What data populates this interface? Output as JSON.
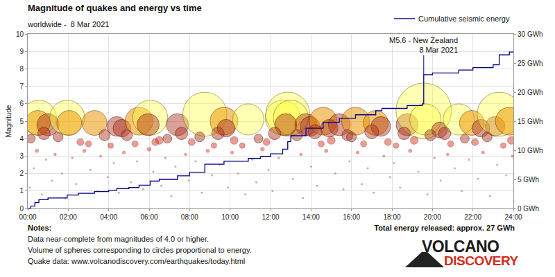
{
  "chart_data": {
    "type": "scatter",
    "title": "Magnitude of quakes and energy vs time",
    "subtitle": "worldwide -  8 Mar 2021",
    "y_label": "Magnitude",
    "xlim": [
      0,
      24
    ],
    "xticks": [
      {
        "value": 0,
        "label": "00:00"
      },
      {
        "value": 2,
        "label": "02:00"
      },
      {
        "value": 4,
        "label": "04:00"
      },
      {
        "value": 6,
        "label": "06:00"
      },
      {
        "value": 8,
        "label": "08:00"
      },
      {
        "value": 10,
        "label": "10:00"
      },
      {
        "value": 12,
        "label": "12:00"
      },
      {
        "value": 14,
        "label": "14:00"
      },
      {
        "value": 16,
        "label": "16:00"
      },
      {
        "value": 18,
        "label": "18:00"
      },
      {
        "value": 20,
        "label": "20:00"
      },
      {
        "value": 22,
        "label": "22:00"
      },
      {
        "value": 24,
        "label": "24:00"
      }
    ],
    "ylim": [
      0,
      10
    ],
    "yticks": [
      0,
      1,
      2,
      3,
      4,
      5,
      6,
      7,
      8,
      9,
      10
    ],
    "y2lim": [
      0,
      30
    ],
    "y2ticks": [
      {
        "value": 0,
        "label": "0 GWh"
      },
      {
        "value": 5,
        "label": "5 GWh"
      },
      {
        "value": 10,
        "label": "10 GWh"
      },
      {
        "value": 15,
        "label": "15 GWh"
      },
      {
        "value": 20,
        "label": "20 GWh"
      },
      {
        "value": 25,
        "label": "25 GWh"
      },
      {
        "value": 30,
        "label": "30 GWh"
      }
    ],
    "grid": true,
    "legend": "top right",
    "series": [
      {
        "type": "scatter",
        "marker": "bubble",
        "x": [
          0.55,
          0.5,
          1.0,
          1.95,
          2.05,
          3.3,
          4.4,
          4.65,
          5.5,
          6.05,
          5.95,
          7.4,
          8.75,
          9.7,
          9.8,
          10.9,
          12.6,
          12.85,
          13.0,
          12.75,
          13.75,
          13.95,
          14.6,
          14.9,
          15.4,
          16.2,
          17.2,
          17.45,
          18.75,
          19.57,
          19.65,
          20.35,
          21.3,
          21.95,
          22.4,
          23.1,
          23.3,
          23.8,
          0.15,
          0.8,
          1.5,
          2.6,
          3.0,
          3.8,
          4.1,
          4.9,
          5.3,
          6.5,
          6.9,
          7.6,
          8.1,
          8.5,
          9.2,
          9.4,
          10.2,
          10.6,
          11.4,
          11.8,
          12.2,
          13.3,
          14.2,
          15.0,
          15.8,
          16.6,
          17.0,
          17.8,
          18.2,
          18.6,
          19.1,
          19.9,
          20.6,
          20.9,
          21.6,
          22.1,
          22.7,
          23.5,
          23.9,
          6.3,
          14.5,
          16.0,
          0.1,
          0.3,
          0.45,
          0.7,
          0.9,
          1.2,
          1.35,
          1.7,
          1.85,
          2.2,
          2.4,
          2.8,
          3.1,
          3.45,
          3.6,
          3.95,
          4.25,
          4.5,
          4.75,
          5.1,
          5.4,
          5.7,
          6.0,
          6.2,
          6.6,
          6.8,
          7.1,
          7.3,
          7.8,
          7.95,
          8.3,
          8.6,
          8.9,
          9.1,
          9.5,
          9.9,
          10.1,
          10.4,
          10.75,
          11.1,
          11.3,
          11.6,
          11.9,
          12.1,
          12.4,
          13.1,
          13.5,
          13.6,
          14.0,
          14.3,
          14.75,
          15.2,
          15.6,
          15.9,
          16.3,
          16.5,
          16.8,
          17.1,
          17.6,
          17.9,
          18.1,
          18.4,
          18.9,
          19.3,
          19.75,
          20.1,
          20.4,
          20.75,
          21.1,
          21.45,
          21.8,
          22.25,
          22.5,
          22.85,
          23.2,
          23.65,
          23.95
        ],
        "values": [
          5.2,
          4.9,
          4.8,
          5.2,
          4.9,
          4.9,
          4.7,
          4.6,
          5.0,
          5.2,
          4.8,
          4.8,
          5.4,
          5.0,
          4.6,
          5.1,
          5.2,
          5.4,
          5.2,
          4.8,
          4.8,
          4.7,
          5.0,
          4.6,
          4.8,
          5.0,
          4.9,
          4.7,
          4.8,
          5.6,
          5.1,
          4.5,
          5.1,
          4.9,
          4.6,
          4.7,
          5.4,
          5.0,
          4.0,
          4.3,
          4.1,
          3.8,
          3.7,
          4.2,
          3.6,
          4.2,
          3.7,
          3.9,
          4.0,
          4.3,
          3.8,
          4.1,
          3.6,
          4.3,
          3.9,
          3.6,
          4.0,
          3.8,
          4.3,
          4.2,
          4.4,
          3.9,
          4.2,
          3.7,
          4.4,
          3.8,
          3.6,
          4.3,
          3.9,
          4.2,
          4.3,
          3.7,
          4.0,
          3.8,
          4.1,
          3.6,
          3.9,
          3.8,
          3.7,
          4.1,
          1.2,
          2.3,
          3.3,
          0.8,
          2.8,
          1.6,
          3.1,
          2.0,
          0.6,
          2.9,
          1.4,
          3.3,
          2.2,
          1.0,
          3.0,
          1.8,
          2.6,
          0.9,
          3.2,
          1.5,
          2.7,
          1.1,
          3.4,
          2.1,
          1.3,
          2.9,
          0.7,
          2.4,
          3.1,
          1.6,
          2.7,
          0.9,
          3.3,
          1.9,
          2.5,
          1.2,
          3.2,
          2.0,
          0.8,
          2.8,
          1.5,
          3.4,
          2.2,
          1.0,
          2.9,
          1.7,
          3.1,
          0.6,
          2.4,
          1.3,
          3.3,
          2.0,
          1.1,
          2.7,
          3.2,
          1.4,
          2.3,
          0.9,
          3.0,
          1.8,
          2.6,
          1.2,
          3.3,
          2.1,
          0.8,
          2.9,
          1.6,
          3.1,
          2.3,
          1.0,
          2.8,
          1.7,
          3.2,
          0.7,
          2.5,
          1.9,
          3.0
        ]
      },
      {
        "name": "Cumulative seismic energy",
        "type": "line",
        "line_style": "step",
        "axis": "y2",
        "color": "#00008b",
        "x": [
          0,
          0.15,
          0.35,
          0.55,
          1.0,
          1.95,
          2.5,
          3.3,
          4.0,
          4.4,
          5.0,
          5.5,
          6.05,
          6.5,
          7.4,
          8.0,
          8.75,
          9.7,
          10.9,
          11.5,
          12.0,
          12.6,
          12.85,
          13.0,
          13.75,
          14.6,
          15.4,
          16.2,
          17.2,
          17.5,
          18.75,
          19.5,
          19.57,
          20.0,
          21.3,
          22.0,
          23.0,
          23.3,
          23.8,
          24
        ],
        "values": [
          0,
          0.4,
          1.0,
          1.5,
          1.8,
          2.3,
          2.6,
          2.9,
          3.1,
          3.4,
          3.6,
          4.0,
          4.7,
          5.0,
          5.6,
          6.2,
          7.6,
          8.1,
          8.6,
          8.9,
          9.4,
          10.2,
          11.5,
          12.5,
          13.8,
          14.8,
          15.5,
          16.1,
          16.8,
          17.2,
          17.7,
          18.0,
          23.0,
          23.3,
          23.8,
          24.2,
          24.7,
          26.4,
          26.9,
          27.0
        ]
      }
    ],
    "annotations": [
      {
        "text": [
          "M5.6 - New Zealand",
          "8 Mar 2021"
        ],
        "x": 19.57,
        "y": 23.0,
        "axis": "y2"
      }
    ],
    "notes": {
      "title": "Notes:",
      "lines": [
        "Data near-complete from magnitudes of 4.0 or higher.",
        "Volume of spheres corresponding to circles proportional to energy.",
        "Quake data: www.volcanodiscovery.com/earthquakes/today.html"
      ]
    },
    "total": "Total energy released: approx. 27 GWh",
    "logo": [
      "VOLCANO",
      "DISCOVERY"
    ]
  }
}
